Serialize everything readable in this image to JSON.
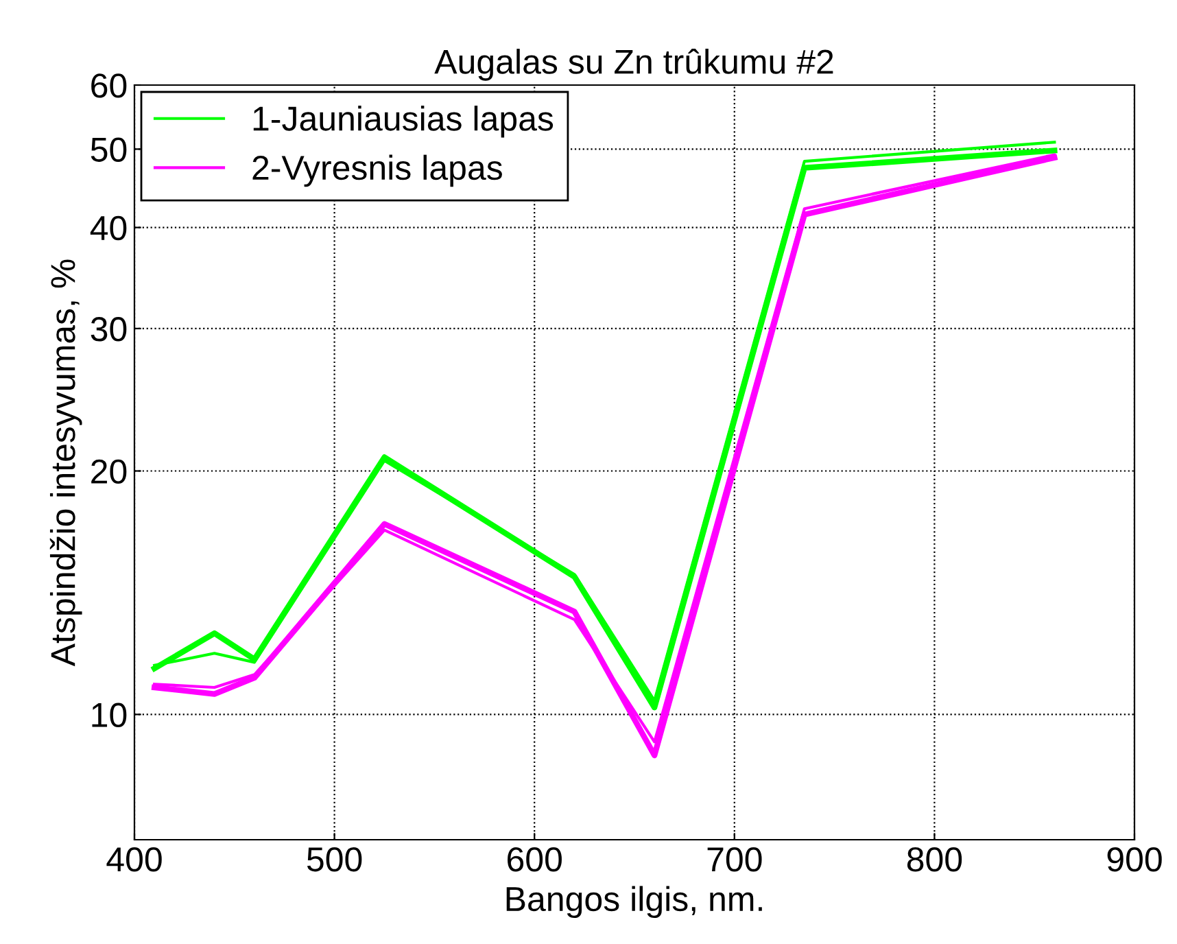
{
  "chart_data": {
    "type": "line",
    "title": "Augalas su Zn trûkumu #2",
    "xlabel": "Bangos ilgis, nm.",
    "ylabel": "Atspindžio intesyvumas, %",
    "x": [
      410,
      440,
      460,
      525,
      620,
      660,
      735,
      860
    ],
    "series": [
      {
        "name": "1-Jauniausias lapas",
        "color": "#00ff00",
        "values": [
          11.4,
          12.6,
          11.7,
          20.8,
          14.8,
          10.2,
          47.4,
          49.8
        ]
      },
      {
        "color": "#00ff00",
        "values": [
          11.5,
          11.9,
          11.6,
          20.6,
          14.9,
          10.4,
          48.3,
          51
        ]
      },
      {
        "name": "2-Vyresnis lapas",
        "color": "#ff00ff",
        "values": [
          10.8,
          10.6,
          11.1,
          17.2,
          13.4,
          8.9,
          41.5,
          48.8
        ]
      },
      {
        "color": "#ff00ff",
        "values": [
          10.9,
          10.8,
          11.2,
          16.9,
          13.1,
          9.25,
          42.2,
          49.2
        ]
      }
    ],
    "log": "y",
    "xlim": [
      400,
      900
    ],
    "xticks": [
      400,
      500,
      600,
      700,
      800,
      900
    ],
    "ylim": [
      7,
      60
    ],
    "yticks": [
      10,
      20,
      30,
      40,
      50,
      60
    ],
    "grid": true,
    "legend": "top left"
  }
}
